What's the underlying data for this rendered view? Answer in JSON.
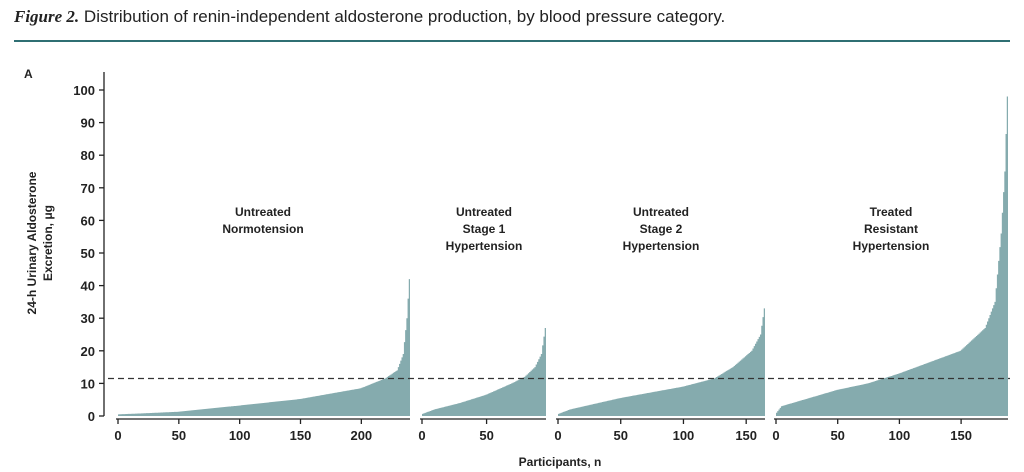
{
  "figure": {
    "label": "Figure 2.",
    "caption": "Distribution of renin-independent aldosterone production, by blood pressure category.",
    "panel_letter": "A"
  },
  "chart_data": {
    "type": "bar",
    "ylabel_line1": "24-h Urinary Aldosterone",
    "ylabel_line2": "Excretion, μg",
    "xlabel": "Participants, n",
    "ylim": [
      0,
      100
    ],
    "yticks": [
      0,
      10,
      20,
      30,
      40,
      50,
      60,
      70,
      80,
      90,
      100
    ],
    "threshold": 11.5,
    "bar_color": "#85abae",
    "panels": [
      {
        "name_lines": [
          "Untreated",
          "Normotension"
        ],
        "n": 240,
        "xticks": [
          0,
          50,
          100,
          150,
          200
        ],
        "profile": [
          [
            0,
            0.5
          ],
          [
            20,
            0.8
          ],
          [
            50,
            1.3
          ],
          [
            100,
            3.2
          ],
          [
            150,
            5.2
          ],
          [
            200,
            8.5
          ],
          [
            220,
            11.5
          ],
          [
            230,
            14
          ],
          [
            235,
            19
          ],
          [
            238,
            30
          ],
          [
            240,
            42
          ]
        ]
      },
      {
        "name_lines": [
          "Untreated",
          "Stage 1",
          "Hypertension"
        ],
        "n": 96,
        "xticks": [
          0,
          50
        ],
        "profile": [
          [
            0,
            0.5
          ],
          [
            10,
            2
          ],
          [
            30,
            4
          ],
          [
            50,
            6.5
          ],
          [
            70,
            10
          ],
          [
            80,
            12
          ],
          [
            88,
            15
          ],
          [
            93,
            19
          ],
          [
            96,
            27
          ]
        ]
      },
      {
        "name_lines": [
          "Untreated",
          "Stage 2",
          "Hypertension"
        ],
        "n": 165,
        "xticks": [
          0,
          50,
          100,
          150
        ],
        "profile": [
          [
            0,
            0.5
          ],
          [
            10,
            2
          ],
          [
            50,
            5.5
          ],
          [
            100,
            9
          ],
          [
            125,
            11.5
          ],
          [
            140,
            15
          ],
          [
            155,
            20
          ],
          [
            162,
            25
          ],
          [
            165,
            33
          ]
        ]
      },
      {
        "name_lines": [
          "Treated",
          "Resistant",
          "Hypertension"
        ],
        "n": 188,
        "xticks": [
          0,
          50,
          100,
          150
        ],
        "profile": [
          [
            0,
            0.5
          ],
          [
            5,
            3
          ],
          [
            50,
            8
          ],
          [
            75,
            10
          ],
          [
            100,
            13
          ],
          [
            150,
            20
          ],
          [
            170,
            27
          ],
          [
            178,
            35
          ],
          [
            183,
            56
          ],
          [
            186,
            75
          ],
          [
            188,
            98
          ]
        ]
      }
    ]
  }
}
